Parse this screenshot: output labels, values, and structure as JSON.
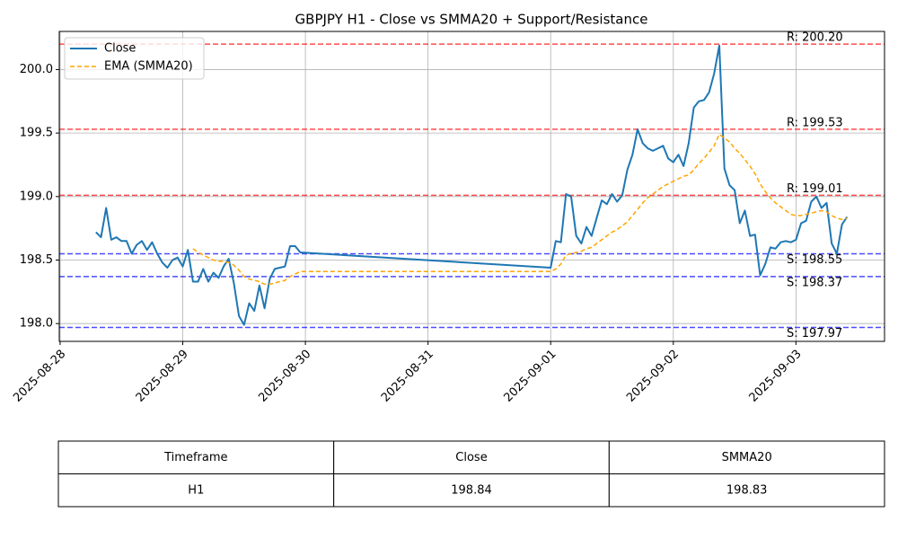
{
  "chart_data": {
    "type": "line",
    "title": "GBPJPY H1 - Close vs SMMA20 + Support/Resistance",
    "x": [
      "2025-08-28T07:00",
      "2025-08-28T08:00",
      "2025-08-28T09:00",
      "2025-08-28T10:00",
      "2025-08-28T11:00",
      "2025-08-28T12:00",
      "2025-08-28T13:00",
      "2025-08-28T14:00",
      "2025-08-28T15:00",
      "2025-08-28T16:00",
      "2025-08-28T17:00",
      "2025-08-28T18:00",
      "2025-08-28T19:00",
      "2025-08-28T20:00",
      "2025-08-28T21:00",
      "2025-08-28T22:00",
      "2025-08-28T23:00",
      "2025-08-29T00:00",
      "2025-08-29T01:00",
      "2025-08-29T02:00",
      "2025-08-29T03:00",
      "2025-08-29T04:00",
      "2025-08-29T05:00",
      "2025-08-29T06:00",
      "2025-08-29T07:00",
      "2025-08-29T08:00",
      "2025-08-29T09:00",
      "2025-08-29T10:00",
      "2025-08-29T11:00",
      "2025-08-29T12:00",
      "2025-08-29T13:00",
      "2025-08-29T14:00",
      "2025-08-29T15:00",
      "2025-08-29T16:00",
      "2025-08-29T17:00",
      "2025-08-29T18:00",
      "2025-08-29T19:00",
      "2025-08-29T20:00",
      "2025-08-29T21:00",
      "2025-08-29T22:00",
      "2025-08-29T23:00",
      "2025-09-01T00:00",
      "2025-09-01T01:00",
      "2025-09-01T02:00",
      "2025-09-01T03:00",
      "2025-09-01T04:00",
      "2025-09-01T05:00",
      "2025-09-01T06:00",
      "2025-09-01T07:00",
      "2025-09-01T08:00",
      "2025-09-01T09:00",
      "2025-09-01T10:00",
      "2025-09-01T11:00",
      "2025-09-01T12:00",
      "2025-09-01T13:00",
      "2025-09-01T14:00",
      "2025-09-01T15:00",
      "2025-09-01T16:00",
      "2025-09-01T17:00",
      "2025-09-01T18:00",
      "2025-09-01T19:00",
      "2025-09-01T20:00",
      "2025-09-01T21:00",
      "2025-09-01T22:00",
      "2025-09-01T23:00",
      "2025-09-02T00:00",
      "2025-09-02T01:00",
      "2025-09-02T02:00",
      "2025-09-02T03:00",
      "2025-09-02T04:00",
      "2025-09-02T05:00",
      "2025-09-02T06:00",
      "2025-09-02T07:00",
      "2025-09-02T08:00",
      "2025-09-02T09:00",
      "2025-09-02T10:00",
      "2025-09-02T11:00",
      "2025-09-02T12:00",
      "2025-09-02T13:00",
      "2025-09-02T14:00",
      "2025-09-02T15:00",
      "2025-09-02T16:00",
      "2025-09-02T17:00",
      "2025-09-02T18:00",
      "2025-09-02T19:00",
      "2025-09-02T20:00",
      "2025-09-02T21:00",
      "2025-09-02T22:00",
      "2025-09-02T23:00",
      "2025-09-03T00:00",
      "2025-09-03T01:00",
      "2025-09-03T02:00",
      "2025-09-03T03:00",
      "2025-09-03T04:00",
      "2025-09-03T05:00",
      "2025-09-03T06:00",
      "2025-09-03T07:00",
      "2025-09-03T08:00",
      "2025-09-03T09:00",
      "2025-09-03T10:00"
    ],
    "series": [
      {
        "name": "Close",
        "color": "#1f77b4",
        "dashed": false,
        "values": [
          198.72,
          198.68,
          198.91,
          198.66,
          198.68,
          198.65,
          198.65,
          198.55,
          198.62,
          198.65,
          198.58,
          198.64,
          198.55,
          198.48,
          198.44,
          198.5,
          198.52,
          198.45,
          198.58,
          198.33,
          198.33,
          198.43,
          198.33,
          198.4,
          198.36,
          198.45,
          198.51,
          198.32,
          198.06,
          197.99,
          198.16,
          198.1,
          198.3,
          198.12,
          198.35,
          198.43,
          198.44,
          198.45,
          198.61,
          198.61,
          198.56,
          198.44,
          198.65,
          198.64,
          199.02,
          199.0,
          198.69,
          198.63,
          198.76,
          198.69,
          198.83,
          198.97,
          198.94,
          199.02,
          198.96,
          199.01,
          199.21,
          199.33,
          199.53,
          199.42,
          199.38,
          199.36,
          199.38,
          199.4,
          199.3,
          199.27,
          199.33,
          199.24,
          199.42,
          199.7,
          199.75,
          199.76,
          199.82,
          199.97,
          200.19,
          199.22,
          199.09,
          199.05,
          198.79,
          198.89,
          198.69,
          198.7,
          198.38,
          198.47,
          198.6,
          198.59,
          198.64,
          198.65,
          198.64,
          198.66,
          198.79,
          198.81,
          198.96,
          199.0,
          198.91,
          198.95,
          198.63,
          198.55,
          198.78,
          198.84
        ]
      },
      {
        "name": "EMA (SMMA20)",
        "color": "#ffa500",
        "dashed": true,
        "values": [
          null,
          null,
          null,
          null,
          null,
          null,
          null,
          null,
          null,
          null,
          null,
          null,
          null,
          null,
          null,
          null,
          null,
          null,
          null,
          198.59,
          198.56,
          198.54,
          198.52,
          198.5,
          198.49,
          198.49,
          198.48,
          198.46,
          198.42,
          198.37,
          198.35,
          198.34,
          198.33,
          198.31,
          198.31,
          198.32,
          198.33,
          198.34,
          198.37,
          198.39,
          198.41,
          198.41,
          198.43,
          198.47,
          198.54,
          198.55,
          198.56,
          198.57,
          198.59,
          198.6,
          198.63,
          198.66,
          198.69,
          198.72,
          198.74,
          198.77,
          198.8,
          198.85,
          198.9,
          198.95,
          198.99,
          199.02,
          199.05,
          199.08,
          199.1,
          199.12,
          199.14,
          199.16,
          199.17,
          199.21,
          199.26,
          199.3,
          199.35,
          199.4,
          199.49,
          199.46,
          199.43,
          199.38,
          199.34,
          199.29,
          199.24,
          199.18,
          199.1,
          199.04,
          198.99,
          198.95,
          198.92,
          198.89,
          198.86,
          198.85,
          198.85,
          198.86,
          198.87,
          198.88,
          198.89,
          198.88,
          198.85,
          198.83,
          198.82,
          198.83
        ]
      }
    ],
    "resistance": {
      "color": "#ff0000",
      "levels": [
        {
          "value": 200.2,
          "label": "R: 200.20"
        },
        {
          "value": 199.53,
          "label": "R: 199.53"
        },
        {
          "value": 199.01,
          "label": "R: 199.01"
        }
      ]
    },
    "support": {
      "color": "#0000ff",
      "levels": [
        {
          "value": 198.55,
          "label": "S: 198.55"
        },
        {
          "value": 198.37,
          "label": "S: 198.37"
        },
        {
          "value": 197.97,
          "label": "S: 197.97"
        }
      ]
    },
    "xlim": [
      "2025-08-27T23:50",
      "2025-09-03T17:20"
    ],
    "xticks": [
      "2025-08-28",
      "2025-08-29",
      "2025-08-30",
      "2025-08-31",
      "2025-09-01",
      "2025-09-02",
      "2025-09-03"
    ],
    "ylim": [
      197.86,
      200.3
    ],
    "yticks": [
      {
        "value": 198,
        "label": "198.0"
      },
      198.5,
      {
        "value": 199,
        "label": "199.0"
      },
      199.5,
      {
        "value": 200,
        "label": "200.0"
      }
    ],
    "grid": true,
    "legend": "upper left"
  },
  "table": {
    "headers": [
      "Timeframe",
      "Close",
      "SMMA20"
    ],
    "rows": [
      [
        "H1",
        "198.84",
        "198.83"
      ]
    ]
  }
}
